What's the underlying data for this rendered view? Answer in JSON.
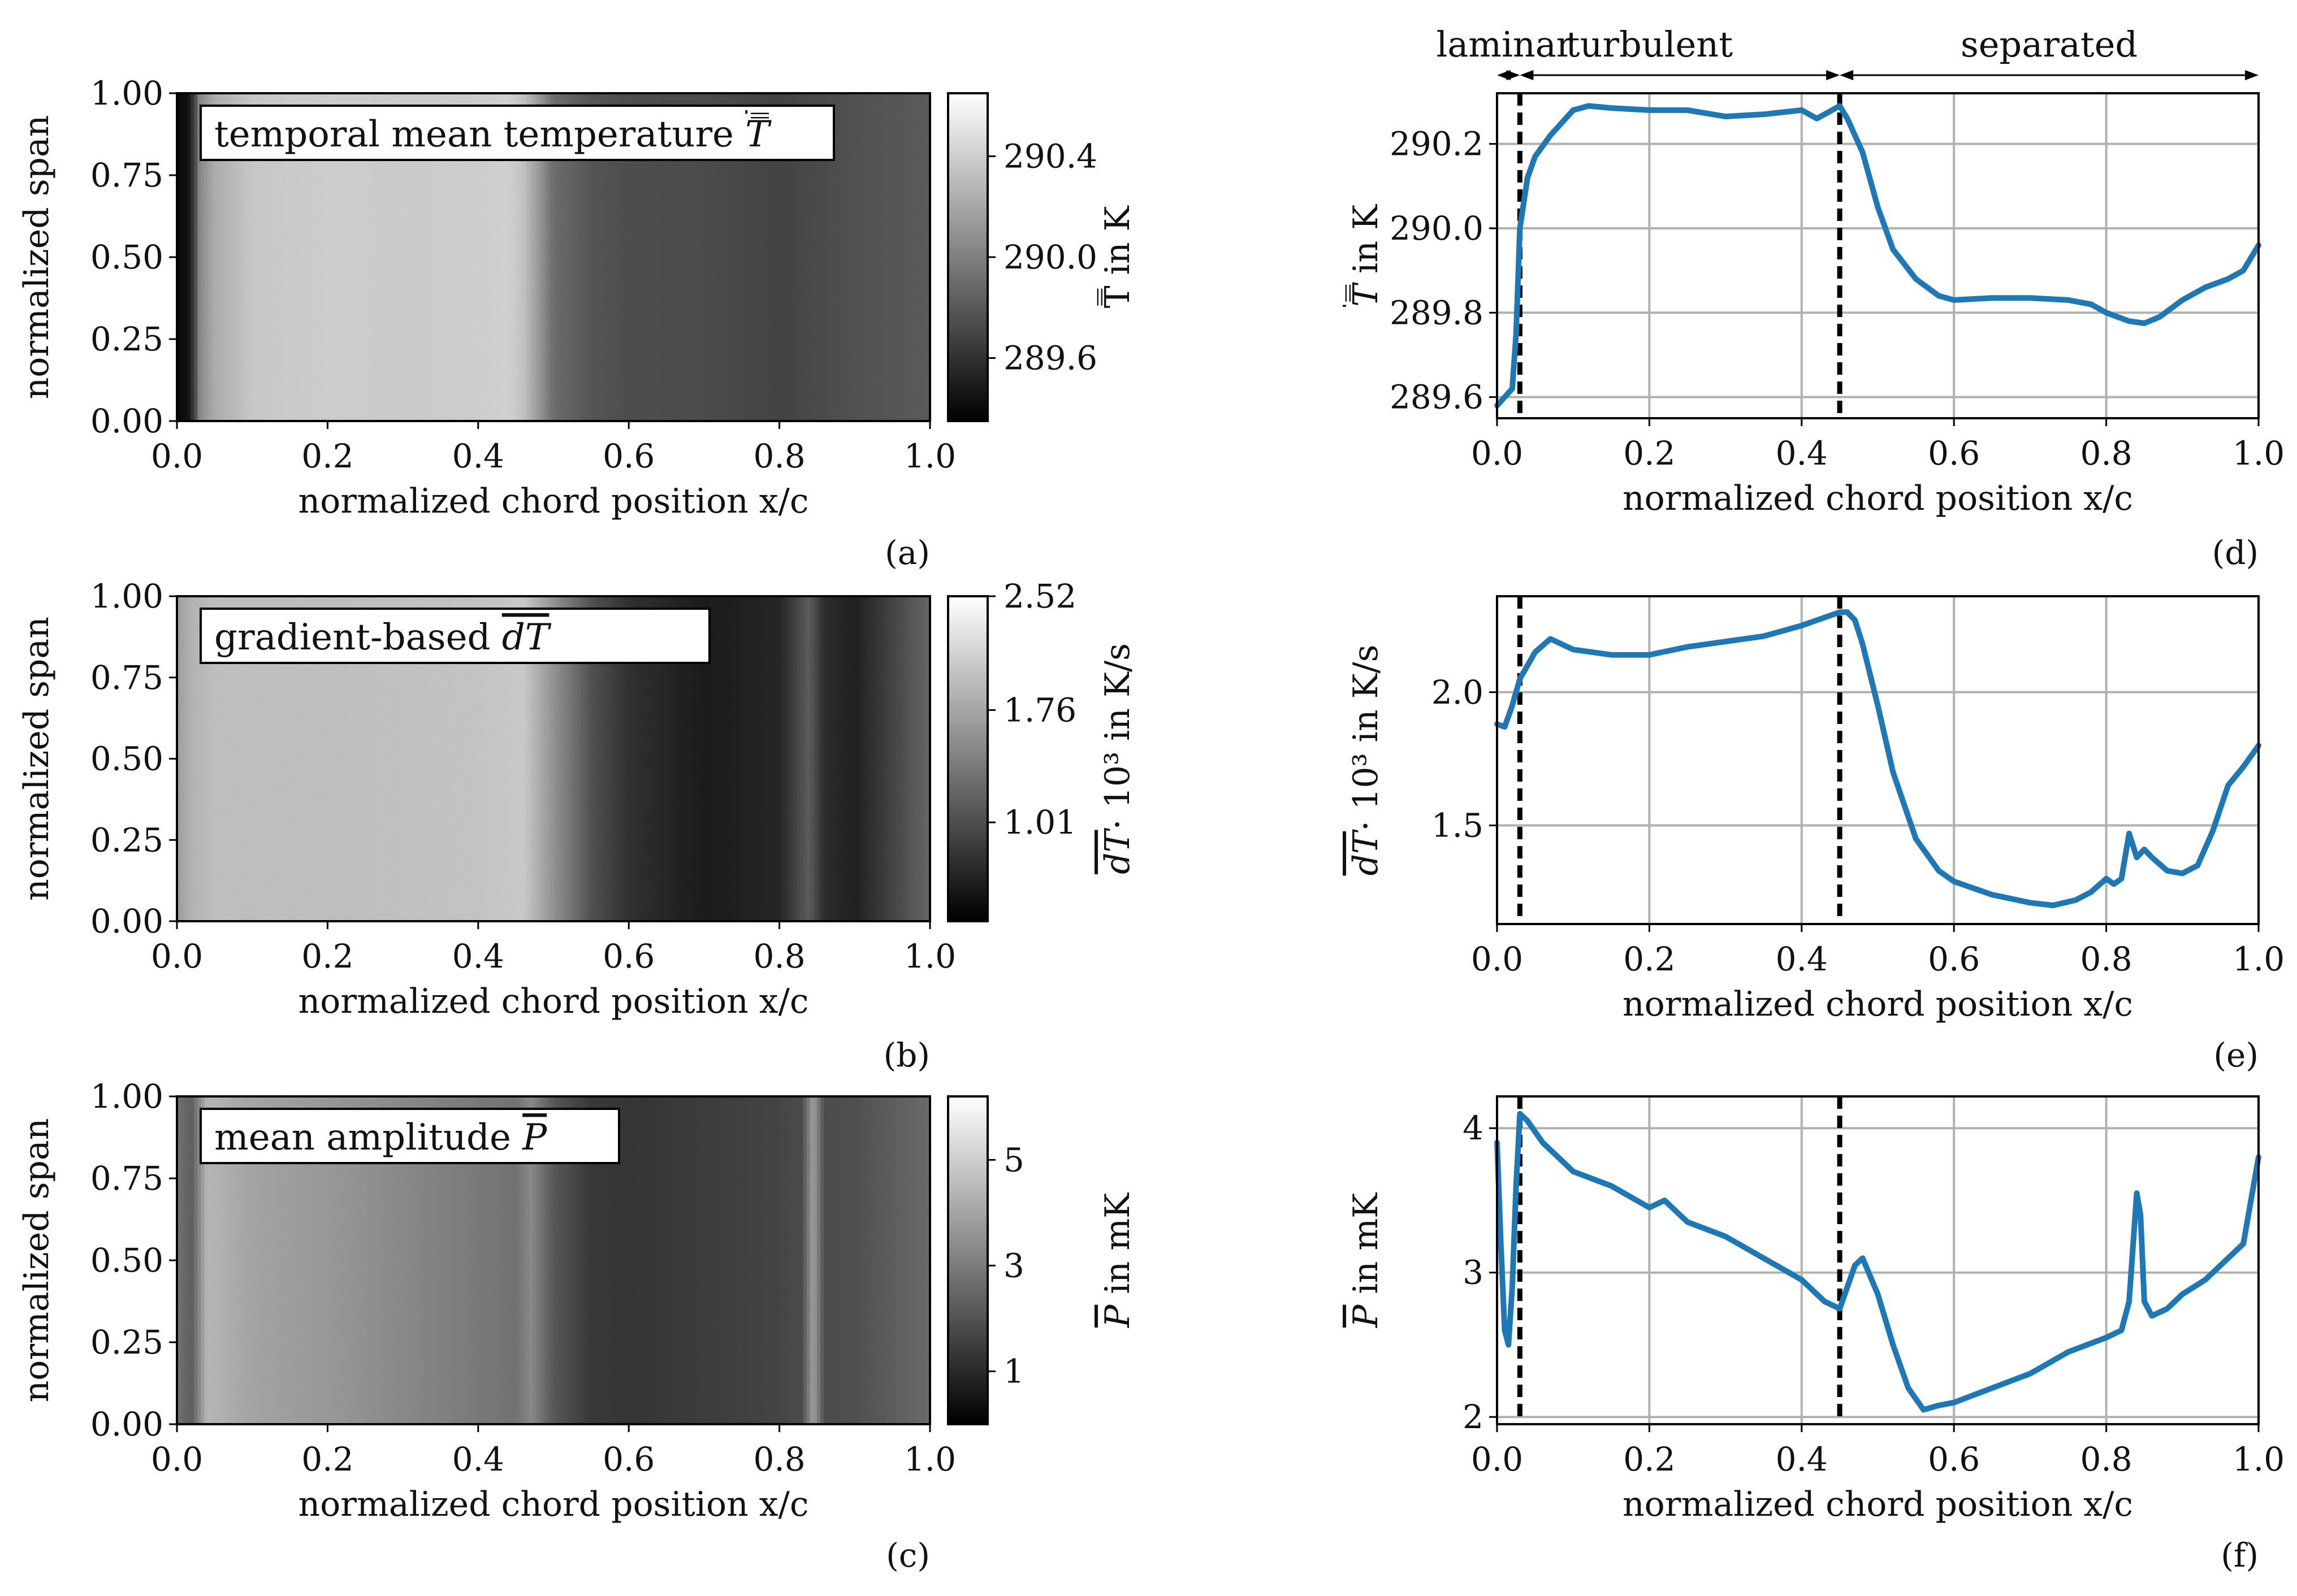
{
  "chart_data": [
    {
      "panel": "(a)",
      "type": "heatmap",
      "annotation_prefix": "temporal mean temperature",
      "annotation_symbol": "T̿",
      "xlabel": "normalized chord position x/c",
      "ylabel": "normalized span",
      "xlim": [
        0.0,
        1.0
      ],
      "ylim": [
        0.0,
        1.0
      ],
      "xticks": [
        "0.0",
        "0.2",
        "0.4",
        "0.6",
        "0.8",
        "1.0"
      ],
      "yticks": [
        "0.00",
        "0.25",
        "0.50",
        "0.75",
        "1.00"
      ],
      "colorbar_label": "T̿ in K",
      "colorbar_range": [
        289.35,
        290.65
      ],
      "colorbar_ticks": [
        {
          "value": 290.4,
          "label": "290.4"
        },
        {
          "value": 290.0,
          "label": "290.0"
        },
        {
          "value": 289.6,
          "label": "289.6"
        }
      ],
      "colormap": "gray",
      "field_profile_x": [
        0.0,
        0.015,
        0.025,
        0.03,
        0.05,
        0.1,
        0.2,
        0.3,
        0.4,
        0.44,
        0.46,
        0.48,
        0.5,
        0.55,
        0.6,
        0.7,
        0.8,
        0.9,
        1.0
      ],
      "field_profile_v": [
        289.4,
        289.45,
        289.8,
        290.1,
        290.3,
        290.45,
        290.48,
        290.47,
        290.48,
        290.5,
        290.42,
        290.2,
        289.95,
        289.82,
        289.78,
        289.77,
        289.72,
        289.8,
        289.85
      ]
    },
    {
      "panel": "(b)",
      "type": "heatmap",
      "annotation_prefix": "gradient-based",
      "annotation_symbol": "dT",
      "xlabel": "normalized chord position x/c",
      "ylabel": "normalized span",
      "xlim": [
        0.0,
        1.0
      ],
      "ylim": [
        0.0,
        1.0
      ],
      "xticks": [
        "0.0",
        "0.2",
        "0.4",
        "0.6",
        "0.8",
        "1.0"
      ],
      "yticks": [
        "0.00",
        "0.25",
        "0.50",
        "0.75",
        "1.00"
      ],
      "colorbar_label_symbol": "dT",
      "colorbar_label_suffix": "· 10³ in K/s",
      "colorbar_range": [
        0.35,
        2.52
      ],
      "colorbar_ticks": [
        {
          "value": 2.52,
          "label": "2.52"
        },
        {
          "value": 1.76,
          "label": "1.76"
        },
        {
          "value": 1.01,
          "label": "1.01"
        }
      ],
      "colormap": "gray",
      "field_profile_x": [
        0.0,
        0.02,
        0.05,
        0.2,
        0.4,
        0.46,
        0.5,
        0.55,
        0.6,
        0.7,
        0.8,
        0.84,
        0.86,
        0.9,
        1.0
      ],
      "field_profile_v": [
        1.8,
        2.0,
        2.1,
        2.1,
        2.15,
        2.2,
        1.7,
        1.1,
        0.8,
        0.6,
        0.7,
        1.2,
        0.75,
        0.65,
        1.3
      ]
    },
    {
      "panel": "(c)",
      "type": "heatmap",
      "annotation_prefix": "mean amplitude",
      "annotation_symbol": "P",
      "xlabel": "normalized chord position x/c",
      "ylabel": "normalized span",
      "xlim": [
        0.0,
        1.0
      ],
      "ylim": [
        0.0,
        1.0
      ],
      "xticks": [
        "0.0",
        "0.2",
        "0.4",
        "0.6",
        "0.8",
        "1.0"
      ],
      "yticks": [
        "0.00",
        "0.25",
        "0.50",
        "0.75",
        "1.00"
      ],
      "colorbar_label_symbol": "P",
      "colorbar_label_suffix": " in mK",
      "colorbar_range": [
        0.0,
        6.2
      ],
      "colorbar_ticks": [
        {
          "value": 5,
          "label": "5"
        },
        {
          "value": 3,
          "label": "3"
        },
        {
          "value": 1,
          "label": "1"
        }
      ],
      "colormap": "gray",
      "field_profile_x": [
        0.0,
        0.02,
        0.04,
        0.1,
        0.2,
        0.3,
        0.4,
        0.45,
        0.47,
        0.5,
        0.55,
        0.6,
        0.7,
        0.8,
        0.83,
        0.845,
        0.86,
        0.9,
        1.0
      ],
      "field_profile_v": [
        3.0,
        2.5,
        4.8,
        4.3,
        4.0,
        3.6,
        3.2,
        3.0,
        3.6,
        2.3,
        1.5,
        1.4,
        1.6,
        1.8,
        2.0,
        4.2,
        2.0,
        2.1,
        2.8
      ]
    },
    {
      "panel": "(d)",
      "type": "line",
      "xlabel": "normalized chord position x/c",
      "ylabel_symbol": "T̿",
      "ylabel_suffix": " in K",
      "xlim": [
        0.0,
        1.0
      ],
      "ylim": [
        289.55,
        290.32
      ],
      "xticks": [
        "0.0",
        "0.2",
        "0.4",
        "0.6",
        "0.8",
        "1.0"
      ],
      "yticks": [
        {
          "value": 289.6,
          "label": "289.6"
        },
        {
          "value": 289.8,
          "label": "289.8"
        },
        {
          "value": 290.0,
          "label": "290.0"
        },
        {
          "value": 290.2,
          "label": "290.2"
        }
      ],
      "vlines": [
        0.03,
        0.45
      ],
      "color": "#1f77b4",
      "x": [
        0.0,
        0.01,
        0.02,
        0.025,
        0.03,
        0.04,
        0.05,
        0.07,
        0.1,
        0.12,
        0.15,
        0.2,
        0.25,
        0.3,
        0.35,
        0.4,
        0.42,
        0.45,
        0.46,
        0.48,
        0.5,
        0.52,
        0.55,
        0.58,
        0.6,
        0.65,
        0.7,
        0.75,
        0.78,
        0.8,
        0.83,
        0.85,
        0.87,
        0.9,
        0.93,
        0.96,
        0.98,
        1.0
      ],
      "y": [
        289.58,
        289.6,
        289.62,
        289.75,
        290.0,
        290.12,
        290.17,
        290.22,
        290.28,
        290.29,
        290.285,
        290.28,
        290.28,
        290.265,
        290.27,
        290.28,
        290.26,
        290.29,
        290.26,
        290.18,
        290.05,
        289.95,
        289.88,
        289.84,
        289.83,
        289.835,
        289.835,
        289.83,
        289.82,
        289.8,
        289.78,
        289.775,
        289.79,
        289.83,
        289.86,
        289.88,
        289.9,
        289.96
      ]
    },
    {
      "panel": "(e)",
      "type": "line",
      "xlabel": "normalized chord position x/c",
      "ylabel_symbol": "dT",
      "ylabel_suffix": "· 10³ in K/s",
      "xlim": [
        0.0,
        1.0
      ],
      "ylim": [
        1.13,
        2.36
      ],
      "xticks": [
        "0.0",
        "0.2",
        "0.4",
        "0.6",
        "0.8",
        "1.0"
      ],
      "yticks": [
        {
          "value": 1.5,
          "label": "1.5"
        },
        {
          "value": 2.0,
          "label": "2.0"
        }
      ],
      "vlines": [
        0.03,
        0.45
      ],
      "color": "#1f77b4",
      "x": [
        0.0,
        0.01,
        0.02,
        0.03,
        0.05,
        0.07,
        0.1,
        0.15,
        0.2,
        0.25,
        0.3,
        0.35,
        0.4,
        0.43,
        0.45,
        0.46,
        0.47,
        0.48,
        0.5,
        0.52,
        0.55,
        0.58,
        0.6,
        0.65,
        0.7,
        0.73,
        0.76,
        0.78,
        0.8,
        0.81,
        0.82,
        0.83,
        0.84,
        0.85,
        0.86,
        0.88,
        0.9,
        0.92,
        0.94,
        0.96,
        0.98,
        1.0
      ],
      "y": [
        1.88,
        1.87,
        1.95,
        2.05,
        2.15,
        2.2,
        2.16,
        2.14,
        2.14,
        2.17,
        2.19,
        2.21,
        2.25,
        2.28,
        2.3,
        2.3,
        2.27,
        2.18,
        1.95,
        1.7,
        1.45,
        1.33,
        1.29,
        1.24,
        1.21,
        1.2,
        1.22,
        1.25,
        1.3,
        1.28,
        1.3,
        1.47,
        1.38,
        1.41,
        1.38,
        1.33,
        1.32,
        1.35,
        1.48,
        1.65,
        1.72,
        1.8
      ]
    },
    {
      "panel": "(f)",
      "type": "line",
      "xlabel": "normalized chord position x/c",
      "ylabel_symbol": "P",
      "ylabel_suffix": " in mK",
      "xlim": [
        0.0,
        1.0
      ],
      "ylim": [
        1.95,
        4.22
      ],
      "xticks": [
        "0.0",
        "0.2",
        "0.4",
        "0.6",
        "0.8",
        "1.0"
      ],
      "yticks": [
        {
          "value": 2,
          "label": "2"
        },
        {
          "value": 3,
          "label": "3"
        },
        {
          "value": 4,
          "label": "4"
        }
      ],
      "vlines": [
        0.03,
        0.45
      ],
      "color": "#1f77b4",
      "x": [
        0.0,
        0.005,
        0.01,
        0.015,
        0.02,
        0.025,
        0.03,
        0.04,
        0.06,
        0.08,
        0.1,
        0.15,
        0.2,
        0.22,
        0.25,
        0.3,
        0.35,
        0.4,
        0.43,
        0.45,
        0.46,
        0.47,
        0.48,
        0.5,
        0.52,
        0.54,
        0.56,
        0.58,
        0.6,
        0.65,
        0.7,
        0.75,
        0.8,
        0.82,
        0.83,
        0.84,
        0.845,
        0.85,
        0.86,
        0.88,
        0.9,
        0.93,
        0.96,
        0.98,
        1.0
      ],
      "y": [
        3.9,
        3.2,
        2.6,
        2.5,
        2.9,
        3.6,
        4.1,
        4.05,
        3.9,
        3.8,
        3.7,
        3.6,
        3.45,
        3.5,
        3.35,
        3.25,
        3.1,
        2.95,
        2.8,
        2.75,
        2.9,
        3.05,
        3.1,
        2.85,
        2.5,
        2.2,
        2.05,
        2.08,
        2.1,
        2.2,
        2.3,
        2.45,
        2.55,
        2.6,
        2.8,
        3.55,
        3.4,
        2.8,
        2.7,
        2.75,
        2.85,
        2.95,
        3.1,
        3.2,
        3.8
      ]
    }
  ],
  "regions": {
    "laminar": "laminar",
    "turbulent": "turbulent",
    "separated": "separated"
  }
}
